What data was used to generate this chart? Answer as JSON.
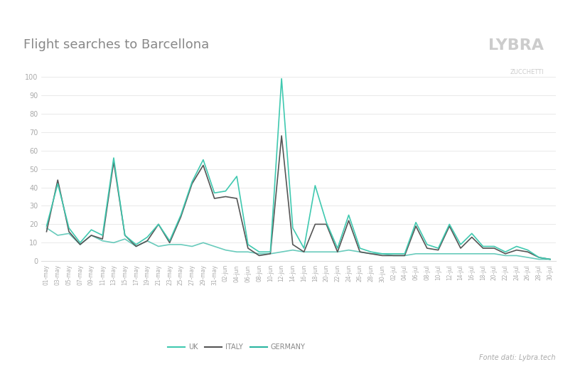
{
  "title": "Flight searches to Barcellona",
  "logo_text": "LYBRA",
  "logo_sub": "ZUCCHETTI",
  "source": "Fonte dati: Lybra.tech",
  "uk_color": "#40c9b0",
  "italy_color": "#555555",
  "germany_color": "#2ab5a0",
  "background_color": "#f9f9f9",
  "ylim": [
    0,
    100
  ],
  "yticks": [
    0,
    10,
    20,
    30,
    40,
    50,
    60,
    70,
    80,
    90,
    100
  ],
  "labels": [
    "01-may",
    "03-may",
    "05-may",
    "07-may",
    "09-may",
    "11-may",
    "13-may",
    "15-may",
    "17-may",
    "19-may",
    "21-may",
    "23-may",
    "25-may",
    "27-may",
    "29-may",
    "31-may",
    "02-jun",
    "04-jun",
    "06-jun",
    "08-jun",
    "10-jun",
    "12-jun",
    "14-jun",
    "16-jun",
    "18-jun",
    "20-jun",
    "22-jun",
    "24-jun",
    "26-jun",
    "28-jun",
    "30-jun",
    "02-jul",
    "04-jul",
    "06-jul",
    "08-jul",
    "10-jul",
    "12-jul",
    "14-jul",
    "16-jul",
    "18-jul",
    "20-jul",
    "22-jul",
    "24-jul",
    "26-jul",
    "28-jul",
    "30-jul"
  ],
  "uk": [
    19,
    42,
    18,
    10,
    17,
    14,
    56,
    14,
    9,
    13,
    20,
    11,
    25,
    43,
    55,
    37,
    38,
    46,
    9,
    5,
    5,
    99,
    18,
    7,
    41,
    21,
    7,
    25,
    7,
    5,
    4,
    4,
    4,
    21,
    9,
    7,
    20,
    9,
    15,
    8,
    8,
    5,
    8,
    6,
    2,
    1
  ],
  "italy": [
    16,
    44,
    16,
    9,
    14,
    12,
    54,
    14,
    8,
    11,
    20,
    10,
    24,
    42,
    52,
    34,
    35,
    34,
    7,
    3,
    4,
    68,
    9,
    5,
    20,
    20,
    5,
    22,
    5,
    4,
    3,
    3,
    3,
    19,
    7,
    6,
    19,
    7,
    13,
    7,
    7,
    4,
    6,
    5,
    2,
    1
  ],
  "germany": [
    18,
    14,
    15,
    9,
    14,
    11,
    10,
    12,
    8,
    11,
    8,
    9,
    9,
    8,
    10,
    8,
    6,
    5,
    5,
    4,
    4,
    5,
    6,
    5,
    5,
    5,
    5,
    6,
    5,
    4,
    4,
    3,
    3,
    4,
    4,
    4,
    4,
    4,
    4,
    4,
    4,
    3,
    3,
    2,
    1,
    1
  ]
}
